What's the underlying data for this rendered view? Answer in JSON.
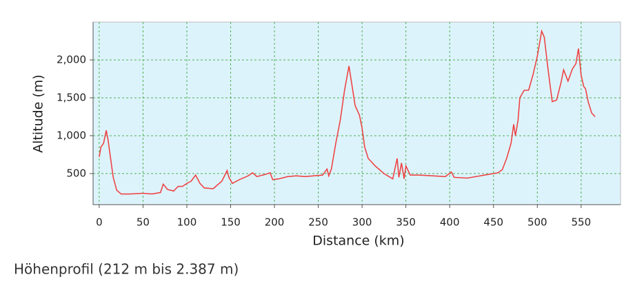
{
  "chart_data": {
    "type": "line",
    "xlabel": "Distance (km)",
    "ylabel": "Altitude (m)",
    "caption": "Höhenprofil (212 m bis 2.387 m)",
    "x": [
      0,
      2,
      5,
      8,
      10,
      13,
      16,
      20,
      25,
      35,
      50,
      60,
      70,
      73,
      78,
      85,
      90,
      95,
      100,
      105,
      110,
      115,
      120,
      130,
      140,
      146,
      148,
      152,
      160,
      170,
      175,
      180,
      190,
      195,
      198,
      205,
      215,
      225,
      235,
      245,
      255,
      260,
      262,
      265,
      270,
      275,
      280,
      285,
      288,
      292,
      297,
      300,
      303,
      307,
      315,
      325,
      335,
      340,
      342,
      345,
      348,
      350,
      355,
      365,
      380,
      395,
      402,
      405,
      420,
      440,
      455,
      460,
      465,
      470,
      473,
      475,
      478,
      480,
      485,
      490,
      495,
      500,
      505,
      508,
      512,
      517,
      522,
      527,
      530,
      535,
      540,
      544,
      547,
      550,
      553,
      555,
      558,
      562,
      566
    ],
    "series": [
      {
        "name": "Altitude",
        "color": "#ee4444",
        "values": [
          720,
          850,
          900,
          1070,
          950,
          700,
          450,
          280,
          230,
          230,
          240,
          230,
          250,
          360,
          290,
          270,
          330,
          330,
          370,
          400,
          480,
          370,
          310,
          300,
          400,
          540,
          450,
          370,
          420,
          470,
          510,
          460,
          490,
          510,
          420,
          430,
          460,
          470,
          460,
          470,
          480,
          560,
          470,
          560,
          900,
          1200,
          1600,
          1920,
          1700,
          1400,
          1270,
          1100,
          850,
          700,
          600,
          500,
          430,
          700,
          450,
          640,
          430,
          600,
          480,
          480,
          470,
          460,
          520,
          450,
          440,
          480,
          510,
          550,
          700,
          900,
          1150,
          1000,
          1200,
          1500,
          1600,
          1600,
          1800,
          2050,
          2380,
          2300,
          1900,
          1450,
          1470,
          1700,
          1870,
          1720,
          1880,
          1950,
          2150,
          1800,
          1650,
          1620,
          1450,
          1300,
          1250
        ]
      }
    ],
    "xlim": [
      -7,
      595
    ],
    "ylim": [
      90,
      2500
    ],
    "xticks": [
      0,
      50,
      100,
      150,
      200,
      250,
      300,
      350,
      400,
      450,
      500,
      550
    ],
    "yticks": [
      500,
      {
        "value": 1000,
        "label": "1,000"
      },
      {
        "value": 1500,
        "label": "1,500"
      },
      {
        "value": 2000,
        "label": "2,000"
      }
    ],
    "grid": true,
    "background": "#ddf3fc"
  }
}
